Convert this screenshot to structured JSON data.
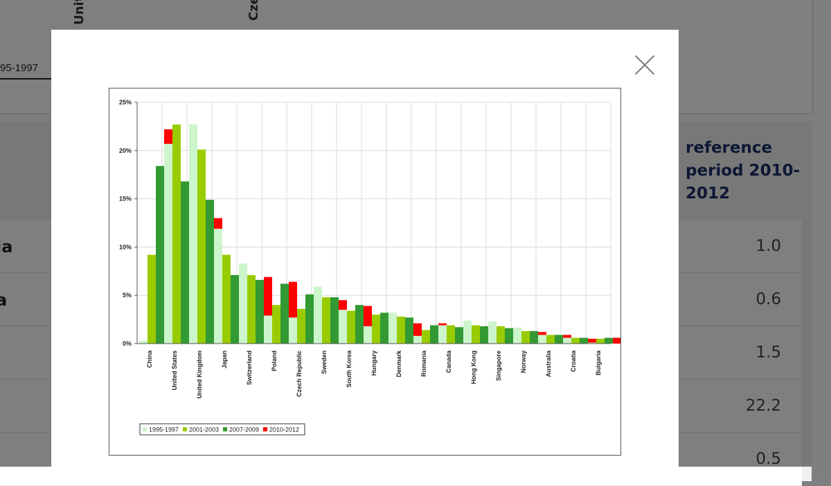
{
  "background": {
    "vertical_labels": [
      "Unit",
      "Cze"
    ],
    "legend_fragment": "95-1997",
    "column_header": "reference period 2010-2012",
    "rows": [
      {
        "label": "ia",
        "value": "1.0"
      },
      {
        "label": "a",
        "value": "0.6"
      },
      {
        "label": "",
        "value": "1.5"
      },
      {
        "label": "",
        "value": "22.2"
      },
      {
        "label": "",
        "value": "0.5"
      }
    ]
  },
  "modal": {
    "close_icon": "close-x-icon"
  },
  "chart_data": {
    "type": "bar",
    "categories": [
      "China",
      "United States",
      "United Kingdom",
      "Japan",
      "Switzerland",
      "Poland",
      "Czech Republic",
      "Sweden",
      "South Korea",
      "Hungary",
      "Denmark",
      "Romania",
      "Canada",
      "Hong Kong",
      "Singapore",
      "Norway",
      "Australia",
      "Croatia",
      "Bulgaria"
    ],
    "series": [
      {
        "name": "1995-1997",
        "color": "#ccf5cc",
        "values": [
          0.3,
          20.7,
          22.7,
          11.9,
          8.3,
          2.9,
          2.7,
          5.9,
          3.5,
          1.8,
          3.2,
          0.8,
          1.9,
          2.4,
          2.3,
          1.6,
          0.9,
          0.6,
          0.1
        ]
      },
      {
        "name": "2001-2003",
        "color": "#99cc00",
        "values": [
          9.2,
          22.7,
          20.1,
          9.2,
          7.1,
          4.0,
          3.6,
          4.8,
          3.4,
          3.0,
          2.8,
          1.4,
          1.9,
          1.9,
          1.8,
          1.3,
          0.9,
          0.6,
          0.5
        ]
      },
      {
        "name": "2007-2009",
        "color": "#339933",
        "values": [
          18.4,
          16.8,
          14.9,
          7.1,
          6.6,
          6.2,
          5.1,
          4.8,
          4.0,
          3.2,
          2.7,
          1.9,
          1.7,
          1.8,
          1.6,
          1.3,
          0.9,
          0.6,
          0.6
        ]
      },
      {
        "name": "2010-2012",
        "color": "#ff0000",
        "values": [
          22.2,
          15.9,
          13.0,
          6.6,
          6.9,
          6.4,
          5.2,
          4.5,
          3.9,
          2.9,
          2.1,
          2.1,
          1.5,
          1.8,
          1.6,
          1.2,
          0.9,
          0.5,
          0.6
        ]
      }
    ],
    "ylim": [
      0,
      25
    ],
    "yticks": [
      "0%",
      "5%",
      "10%",
      "15%",
      "20%",
      "25%"
    ],
    "ytick_values": [
      0,
      5,
      10,
      15,
      20,
      25
    ],
    "grid": true,
    "legend_position": "bottom-left",
    "title": "",
    "xlabel": "",
    "ylabel": ""
  }
}
